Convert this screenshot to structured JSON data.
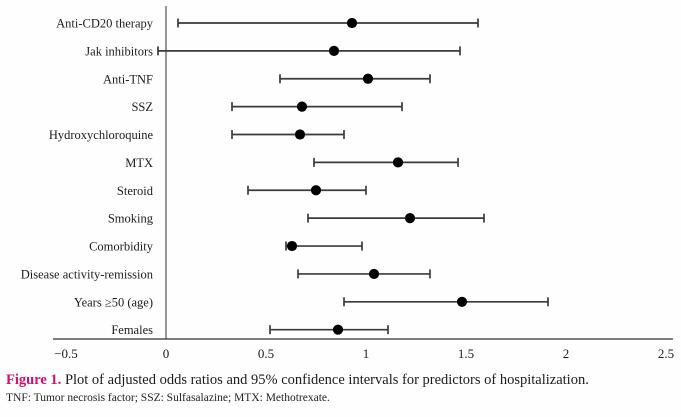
{
  "figure": {
    "caption_label": "Figure 1.",
    "caption_text": "Plot of adjusted odds ratios and 95% confidence intervals for predictors of hospitalization.",
    "footnote": "TNF: Tumor necrosis factor; SSZ: Sulfasalazine; MTX: Methotrexate.",
    "accent_color": "#d40e6e"
  },
  "chart_data": {
    "type": "scatter",
    "subtype": "forest-plot",
    "title": "",
    "xlabel": "",
    "ylabel": "",
    "xlim": [
      -0.5,
      2.5
    ],
    "x_ticks": [
      -0.5,
      0,
      0.5,
      1,
      1.5,
      2,
      2.5
    ],
    "x_tick_labels": [
      "−0.5",
      "0",
      "0.5",
      "1",
      "1.5",
      "2",
      "2.5"
    ],
    "reference_line_x": 0,
    "grid": false,
    "legend": false,
    "point_color": "#000000",
    "line_color": "#3a3a3a",
    "axis_color": "#2e2e2e",
    "rows": [
      {
        "label": "Anti-CD20 therapy",
        "or": 0.93,
        "ci_low": 0.06,
        "ci_high": 1.56
      },
      {
        "label": "Jak inhibitors",
        "or": 0.84,
        "ci_low": -0.04,
        "ci_high": 1.47
      },
      {
        "label": "Anti-TNF",
        "or": 1.01,
        "ci_low": 0.57,
        "ci_high": 1.32
      },
      {
        "label": "SSZ",
        "or": 0.68,
        "ci_low": 0.33,
        "ci_high": 1.18
      },
      {
        "label": "Hydroxychloroquine",
        "or": 0.67,
        "ci_low": 0.33,
        "ci_high": 0.89
      },
      {
        "label": "MTX",
        "or": 1.16,
        "ci_low": 0.74,
        "ci_high": 1.46
      },
      {
        "label": "Steroid",
        "or": 0.75,
        "ci_low": 0.41,
        "ci_high": 1.0
      },
      {
        "label": "Smoking",
        "or": 1.22,
        "ci_low": 0.71,
        "ci_high": 1.59
      },
      {
        "label": "Comorbidity",
        "or": 0.63,
        "ci_low": 0.6,
        "ci_high": 0.98
      },
      {
        "label": "Disease activity-remission",
        "or": 1.04,
        "ci_low": 0.66,
        "ci_high": 1.32
      },
      {
        "label": "Years ≥50 (age)",
        "or": 1.48,
        "ci_low": 0.89,
        "ci_high": 1.91
      },
      {
        "label": "Females",
        "or": 0.86,
        "ci_low": 0.52,
        "ci_high": 1.11
      }
    ]
  }
}
